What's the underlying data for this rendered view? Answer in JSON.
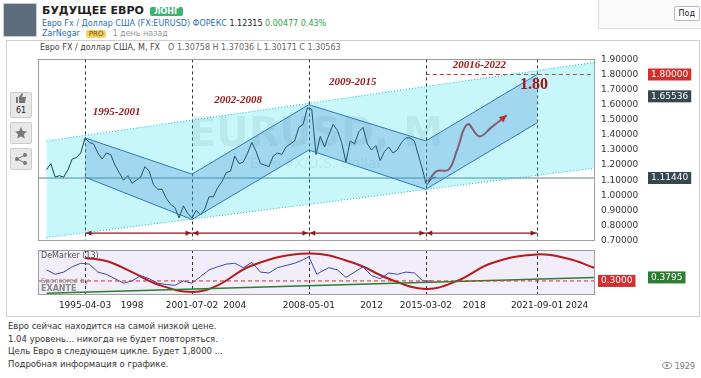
{
  "page": {
    "header": {
      "title": "БУДУЩЕЕ ЕВРО",
      "badge": "ЛОНГ",
      "symbol": "Евро Fx / Доллар США (FX:EURUSD)",
      "market": "ФОРЕКС",
      "price": "1.12315",
      "change": "0.00477",
      "change_pct": "0.43%",
      "author": "ZarNegar",
      "author_badge": "PRO",
      "time": "1 день назад",
      "button": "Под"
    },
    "likes": "61",
    "views": "1929",
    "description": [
      "Евро сейчас находится на самой низкой цене.",
      "1.04 уровень... никогда не будет повторяться.",
      "Цель Евро в следующем цикле. Будет 1,8000 ...",
      "Подробная информация о графике."
    ]
  },
  "chart_data": [
    {
      "type": "line",
      "title": "Евро FX / доллар США, M, FX",
      "subtitle": "O 1.30758 H 1.37036 L 1.30171 C 1.30563",
      "watermark": [
        "EURUSD, M",
        "Euro FX/U.S. Dollar"
      ],
      "xlim": [
        1992.5,
        2025
      ],
      "xticks": [
        {
          "value": 1995.25,
          "label": "1995-04-03"
        },
        1998,
        {
          "value": 2001.5,
          "label": "2001-07-02"
        },
        2004,
        {
          "value": 2008.33,
          "label": "2008-05-01"
        },
        2012,
        {
          "value": 2015.17,
          "label": "2015-03-02"
        },
        2018,
        {
          "value": 2021.67,
          "label": "2021-09-01"
        },
        2024
      ],
      "ylim": [
        0.7,
        1.9
      ],
      "yticks": [
        {
          "value": 0.7,
          "label": "0.70000"
        },
        {
          "value": 0.8,
          "label": "0.80000"
        },
        {
          "value": 0.9,
          "label": "0.90000"
        },
        {
          "value": 1.0,
          "label": "1.00000"
        },
        {
          "value": 1.1,
          "label": "1.10000"
        },
        {
          "value": 1.2,
          "label": "1.20000"
        },
        {
          "value": 1.3,
          "label": "1.30000"
        },
        {
          "value": 1.4,
          "label": "1.40000"
        },
        {
          "value": 1.5,
          "label": "1.50000"
        },
        {
          "value": 1.6,
          "label": "1.60000"
        },
        {
          "value": 1.7,
          "label": "1.70000"
        },
        {
          "value": 1.8,
          "label": "1.80000"
        },
        {
          "value": 1.9,
          "label": "1.90000"
        }
      ],
      "grid": false,
      "tick_labels": "y",
      "price": {
        "color": "#1a1a1a",
        "x": [
          1993.0,
          1993.25,
          1993.5,
          1993.75,
          1994.0,
          1994.25,
          1994.5,
          1994.75,
          1995.0,
          1995.25,
          1995.5,
          1995.75,
          1996.0,
          1996.25,
          1996.5,
          1996.75,
          1997.0,
          1997.25,
          1997.5,
          1997.75,
          1998.0,
          1998.25,
          1998.5,
          1998.75,
          1999.0,
          1999.25,
          1999.5,
          1999.75,
          2000.0,
          2000.25,
          2000.5,
          2000.75,
          2001.0,
          2001.25,
          2001.5,
          2001.75,
          2002.0,
          2002.25,
          2002.5,
          2002.75,
          2003.0,
          2003.25,
          2003.5,
          2003.75,
          2004.0,
          2004.25,
          2004.5,
          2004.75,
          2005.0,
          2005.25,
          2005.5,
          2005.75,
          2006.0,
          2006.25,
          2006.5,
          2006.75,
          2007.0,
          2007.25,
          2007.5,
          2007.75,
          2008.0,
          2008.25,
          2008.5,
          2008.75,
          2009.0,
          2009.25,
          2009.5,
          2009.75,
          2010.0,
          2010.25,
          2010.5,
          2010.75,
          2011.0,
          2011.25,
          2011.5,
          2011.75,
          2012.0,
          2012.25,
          2012.5,
          2012.75,
          2013.0,
          2013.25,
          2013.5,
          2013.75,
          2014.0,
          2014.25,
          2014.5,
          2014.75,
          2015.0,
          2015.17,
          2015.25,
          2015.5,
          2015.75
        ],
        "values": [
          1.17,
          1.21,
          1.12,
          1.13,
          1.12,
          1.17,
          1.24,
          1.25,
          1.28,
          1.38,
          1.35,
          1.34,
          1.28,
          1.24,
          1.28,
          1.27,
          1.2,
          1.15,
          1.1,
          1.13,
          1.08,
          1.1,
          1.12,
          1.19,
          1.16,
          1.07,
          1.04,
          1.04,
          0.98,
          0.94,
          0.92,
          0.85,
          0.93,
          0.88,
          0.85,
          0.9,
          0.87,
          0.91,
          0.99,
          0.99,
          1.05,
          1.09,
          1.15,
          1.16,
          1.26,
          1.21,
          1.22,
          1.28,
          1.35,
          1.29,
          1.21,
          1.2,
          1.19,
          1.26,
          1.28,
          1.27,
          1.32,
          1.34,
          1.36,
          1.45,
          1.47,
          1.58,
          1.57,
          1.27,
          1.39,
          1.32,
          1.4,
          1.47,
          1.43,
          1.35,
          1.22,
          1.36,
          1.34,
          1.42,
          1.45,
          1.34,
          1.3,
          1.33,
          1.23,
          1.29,
          1.32,
          1.28,
          1.3,
          1.35,
          1.38,
          1.38,
          1.36,
          1.26,
          1.16,
          1.08,
          1.07,
          1.11,
          1.12
        ]
      },
      "outer_channel": {
        "color": "#00bcd4",
        "line_style": "dotted",
        "upper": {
          "x": [
            1993,
            2025
          ],
          "values": [
            1.36,
            1.88
          ]
        },
        "lower": {
          "x": [
            1993,
            2025
          ],
          "values": [
            0.72,
            1.18
          ]
        }
      },
      "channels": [
        {
          "color": "#3b5bab",
          "upper": {
            "x": [
              1995.25,
              2001.5
            ],
            "values": [
              1.38,
              1.14
            ]
          },
          "lower": {
            "x": [
              1995.25,
              2001.5
            ],
            "values": [
              1.12,
              0.84
            ]
          }
        },
        {
          "color": "#3b5bab",
          "upper": {
            "x": [
              2001.5,
              2008.33
            ],
            "values": [
              1.14,
              1.6
            ]
          },
          "lower": {
            "x": [
              2001.5,
              2008.33
            ],
            "values": [
              0.84,
              1.3
            ]
          }
        },
        {
          "color": "#3b5bab",
          "upper": {
            "x": [
              2008.33,
              2015.17
            ],
            "values": [
              1.6,
              1.36
            ]
          },
          "lower": {
            "x": [
              2008.33,
              2015.17
            ],
            "values": [
              1.3,
              1.04
            ]
          }
        },
        {
          "color": "#3b5bab",
          "upper": {
            "x": [
              2015.17,
              2021.67
            ],
            "values": [
              1.36,
              1.8
            ]
          },
          "lower": {
            "x": [
              2015.17,
              2021.67
            ],
            "values": [
              1.04,
              1.48
            ]
          }
        }
      ],
      "forecast": {
        "color": "#c62828",
        "x": [
          2015.3,
          2015.8,
          2016.5,
          2017.0,
          2017.6,
          2018.3,
          2019.0,
          2019.9
        ],
        "values": [
          1.09,
          1.16,
          1.17,
          1.3,
          1.47,
          1.39,
          1.45,
          1.53
        ]
      },
      "levels": [
        {
          "value": 1.8,
          "x": [
            2015.17,
            2025
          ],
          "color": "#d32f2f",
          "line_style": "dashed"
        },
        {
          "value": 1.1144,
          "x": [
            1992.5,
            2025
          ],
          "color": "#607d8b",
          "line_style": "solid"
        }
      ],
      "price_labels": [
        {
          "value": 1.8,
          "label": "1.80000",
          "color": "#d32f2f"
        },
        {
          "value": 1.65536,
          "label": "1.65536",
          "color": "#37474f"
        },
        {
          "value": 1.1144,
          "label": "1.11440",
          "color": "#37474f"
        }
      ],
      "dividers": [
        1995.25,
        2001.5,
        2008.33,
        2015.17,
        2021.67
      ],
      "arrow_level": 0.75,
      "annotations": [
        {
          "text": "1995-2001",
          "x": 1997.1,
          "y": 1.55,
          "color": "#a31515"
        },
        {
          "text": "2002-2008",
          "x": 2004.2,
          "y": 1.63,
          "color": "#a31515"
        },
        {
          "text": "2009-2015",
          "x": 2010.9,
          "y": 1.75,
          "color": "#a31515"
        },
        {
          "text": "20016-2022",
          "x": 2018.3,
          "y": 1.86,
          "color": "#a31515"
        },
        {
          "text": "1.80",
          "x": 2021.5,
          "y": 1.73,
          "color": "#a31515"
        }
      ]
    },
    {
      "type": "line",
      "title": "DeMarker (13)",
      "sponsor": [
        "Sponsored by",
        "EXANTE"
      ],
      "xlim": [
        1992.5,
        2025
      ],
      "xticks": [
        {
          "value": 1995.25,
          "label": "1995-04-03"
        },
        1998,
        {
          "value": 2001.5,
          "label": "2001-07-02"
        },
        2004,
        {
          "value": 2008.33,
          "label": "2008-05-01"
        },
        2012,
        {
          "value": 2015.17,
          "label": "2015-03-02"
        },
        2018,
        {
          "value": 2021.67,
          "label": "2021-09-01"
        },
        2024
      ],
      "ylim": [
        0,
        1
      ],
      "grid": false,
      "tick_labels": "x",
      "demarker": {
        "color": "#3949ab",
        "x": [
          1993.0,
          1993.5,
          1994.0,
          1994.5,
          1995.0,
          1995.5,
          1996.0,
          1996.5,
          1997.0,
          1997.5,
          1998.0,
          1998.5,
          1999.0,
          1999.5,
          2000.0,
          2000.5,
          2001.0,
          2001.5,
          2002.0,
          2002.5,
          2003.0,
          2003.5,
          2004.0,
          2004.5,
          2005.0,
          2005.5,
          2006.0,
          2006.5,
          2007.0,
          2007.5,
          2008.0,
          2008.33,
          2008.8,
          2009.0,
          2009.5,
          2010.0,
          2010.5,
          2011.0,
          2011.5,
          2012.0,
          2012.5,
          2013.0,
          2013.5,
          2014.0,
          2014.5,
          2015.0,
          2015.5
        ],
        "values": [
          0.55,
          0.45,
          0.5,
          0.62,
          0.7,
          0.68,
          0.5,
          0.45,
          0.35,
          0.25,
          0.3,
          0.42,
          0.35,
          0.25,
          0.22,
          0.2,
          0.3,
          0.25,
          0.4,
          0.55,
          0.62,
          0.68,
          0.7,
          0.6,
          0.72,
          0.5,
          0.48,
          0.6,
          0.65,
          0.7,
          0.78,
          0.85,
          0.45,
          0.5,
          0.6,
          0.55,
          0.38,
          0.5,
          0.62,
          0.42,
          0.35,
          0.48,
          0.45,
          0.5,
          0.48,
          0.3,
          0.3
        ]
      },
      "cycle": {
        "color": "#b71c1c",
        "x": [
          1995.25,
          1996.5,
          1998,
          1999.5,
          2001.5,
          2003,
          2005,
          2008.33,
          2011,
          2013,
          2015.17,
          2017,
          2019,
          2021.67,
          2023.5,
          2025
        ],
        "values": [
          0.82,
          0.75,
          0.5,
          0.22,
          0.05,
          0.2,
          0.65,
          0.92,
          0.7,
          0.35,
          0.12,
          0.3,
          0.7,
          0.9,
          0.8,
          0.6
        ]
      },
      "trend": {
        "color": "#2e7d32",
        "x": [
          1993,
          2025
        ],
        "values": [
          0.02,
          0.3795
        ]
      },
      "levels": [
        {
          "value": 0.3,
          "label": "0.3000",
          "x": [
            1992.5,
            2025
          ],
          "color": "#d32f2f",
          "line_style": "dashed"
        }
      ],
      "price_labels": [
        {
          "value": 0.3795,
          "label": "0.3795",
          "color": "#2e7d32"
        }
      ],
      "dividers": [
        1995.25,
        2001.5,
        2008.33,
        2015.17,
        2021.67
      ]
    }
  ]
}
